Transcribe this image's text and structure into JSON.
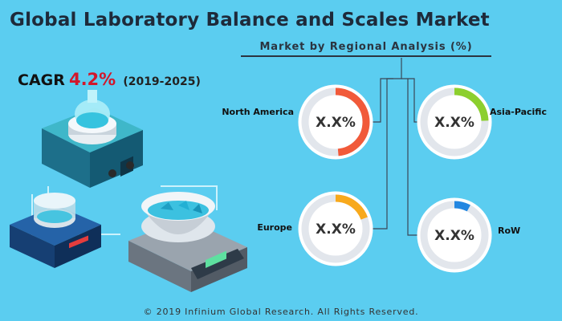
{
  "header": {
    "title": "Global Laboratory Balance and Scales Market",
    "subtitle": "Market by Regional Analysis (%)"
  },
  "cagr": {
    "label": "CAGR",
    "value": "4.2%",
    "period": "(2019-2025)"
  },
  "footer": "© 2019 Infinium Global Research. All Rights Reserved.",
  "colors": {
    "background": "#5bcdf0",
    "ring_track": "#e2e6ec",
    "north_america": "#f15a3a",
    "asia_pacific": "#8ccf2e",
    "europe": "#f8a91c",
    "row": "#2387e1",
    "connector": "#3a4656"
  },
  "chart_data": {
    "type": "pie",
    "title": "Market by Regional Analysis (%)",
    "categories": [
      "North America",
      "Asia-Pacific",
      "Europe",
      "RoW"
    ],
    "display_values": [
      "X.X%",
      "X.X%",
      "X.X%",
      "X.X%"
    ],
    "values": [
      50,
      25,
      20,
      8
    ],
    "unit": "%"
  }
}
